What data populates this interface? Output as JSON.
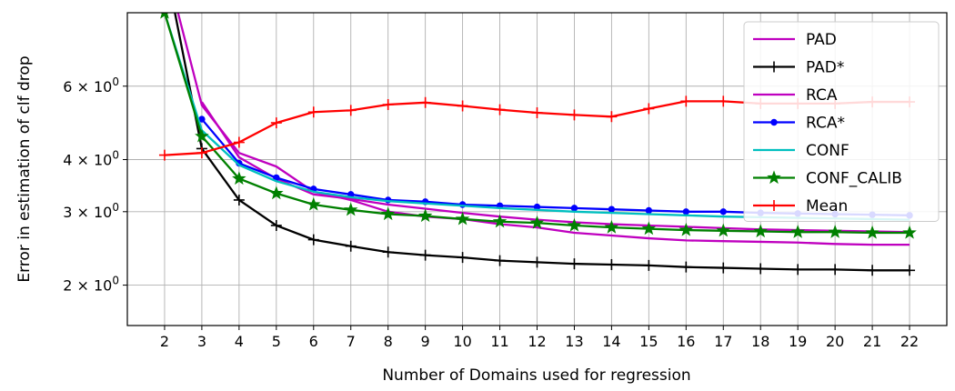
{
  "chart_data": {
    "type": "line",
    "xlabel": "Number of Domains used for regression",
    "ylabel": "Error in estimation of clf drop",
    "y_scale": "log",
    "ylim": [
      1.6,
      9.0
    ],
    "xlim": [
      1,
      23
    ],
    "grid": true,
    "legend_position": "upper-right",
    "x": [
      2,
      3,
      4,
      5,
      6,
      7,
      8,
      9,
      10,
      11,
      12,
      13,
      14,
      15,
      16,
      17,
      18,
      19,
      20,
      21,
      22
    ],
    "x_tick_labels": [
      "2",
      "3",
      "4",
      "5",
      "6",
      "7",
      "8",
      "9",
      "10",
      "11",
      "12",
      "13",
      "14",
      "15",
      "16",
      "17",
      "18",
      "19",
      "20",
      "21",
      "22"
    ],
    "y_ticks": [
      {
        "value": 2,
        "base": "2 × 10",
        "exp": "0"
      },
      {
        "value": 3,
        "base": "3 × 10",
        "exp": "0"
      },
      {
        "value": 4,
        "base": "4 × 10",
        "exp": "0"
      },
      {
        "value": 6,
        "base": "6 × 10",
        "exp": "0"
      }
    ],
    "series": [
      {
        "name": "PAD",
        "color": "#bf00bf",
        "marker": "none",
        "values": [
          12.0,
          5.4,
          4.15,
          3.85,
          3.35,
          3.2,
          3.0,
          2.92,
          2.88,
          2.8,
          2.75,
          2.67,
          2.63,
          2.59,
          2.56,
          2.55,
          2.54,
          2.53,
          2.51,
          2.5,
          2.5
        ]
      },
      {
        "name": "PAD*",
        "color": "#000000",
        "marker": "plus",
        "values": [
          12.0,
          4.25,
          3.2,
          2.78,
          2.57,
          2.48,
          2.4,
          2.36,
          2.33,
          2.29,
          2.27,
          2.25,
          2.24,
          2.23,
          2.21,
          2.2,
          2.19,
          2.18,
          2.18,
          2.17,
          2.17
        ]
      },
      {
        "name": "RCA",
        "color": "#bf00bf",
        "marker": "none",
        "values": [
          null,
          5.5,
          4.05,
          3.6,
          3.3,
          3.22,
          3.12,
          3.05,
          2.98,
          2.92,
          2.87,
          2.83,
          2.8,
          2.78,
          2.76,
          2.74,
          2.72,
          2.71,
          2.7,
          2.69,
          2.68
        ]
      },
      {
        "name": "RCA*",
        "color": "#0000ff",
        "marker": "circle",
        "values": [
          null,
          5.0,
          3.92,
          3.62,
          3.4,
          3.3,
          3.2,
          3.17,
          3.12,
          3.1,
          3.08,
          3.06,
          3.04,
          3.02,
          3.0,
          3.0,
          2.98,
          2.97,
          2.96,
          2.95,
          2.94
        ]
      },
      {
        "name": "CONF",
        "color": "#00bfbf",
        "marker": "none",
        "values": [
          9.0,
          4.7,
          3.88,
          3.55,
          3.35,
          3.25,
          3.18,
          3.14,
          3.1,
          3.06,
          3.03,
          3.0,
          2.98,
          2.96,
          2.94,
          2.92,
          2.91,
          2.9,
          2.89,
          2.88,
          2.87
        ]
      },
      {
        "name": "CONF_CALIB",
        "color": "#008000",
        "marker": "star",
        "values": [
          9.0,
          4.55,
          3.6,
          3.32,
          3.12,
          3.03,
          2.96,
          2.93,
          2.88,
          2.84,
          2.82,
          2.78,
          2.75,
          2.73,
          2.71,
          2.7,
          2.69,
          2.68,
          2.68,
          2.67,
          2.67
        ]
      },
      {
        "name": "Mean",
        "color": "#ff0000",
        "marker": "plus",
        "values": [
          4.1,
          4.15,
          4.4,
          4.9,
          5.2,
          5.25,
          5.42,
          5.48,
          5.38,
          5.27,
          5.18,
          5.12,
          5.07,
          5.3,
          5.52,
          5.52,
          5.45,
          5.45,
          5.45,
          5.5,
          5.5
        ]
      }
    ]
  }
}
